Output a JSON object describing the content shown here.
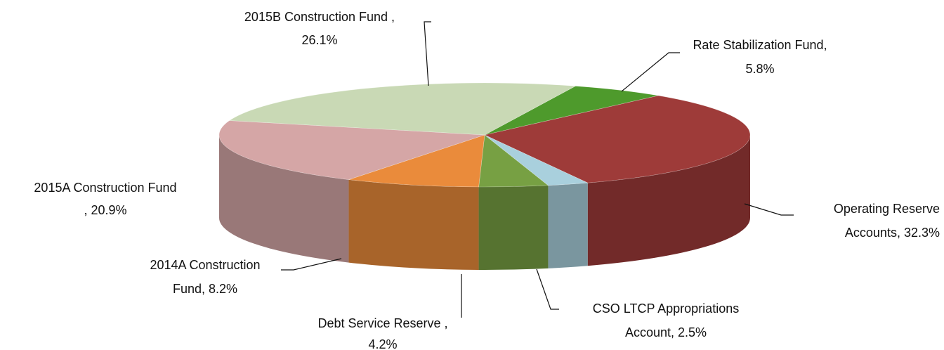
{
  "chart_data": {
    "type": "pie3d",
    "values": [
      5.8,
      32.3,
      2.5,
      4.2,
      8.2,
      20.9,
      26.1
    ],
    "value_labels": [
      [
        "Rate Stabilization Fund,",
        "5.8%"
      ],
      [
        "Operating Reserve",
        "Accounts, 32.3%"
      ],
      [
        "CSO LTCP Appropriations",
        "Account, 2.5%"
      ],
      [
        "Debt Service Reserve ,",
        "4.2%"
      ],
      [
        "2014A Construction",
        "Fund, 8.2%"
      ],
      [
        "2015A Construction Fund",
        ", 20.9%"
      ],
      [
        "2015B Construction Fund ,",
        "26.1%"
      ]
    ],
    "colors": [
      "#4e9a2c",
      "#9e3b39",
      "#a9d0dd",
      "#77a043",
      "#ea8b3b",
      "#d5a6a6",
      "#c9d9b5"
    ]
  }
}
